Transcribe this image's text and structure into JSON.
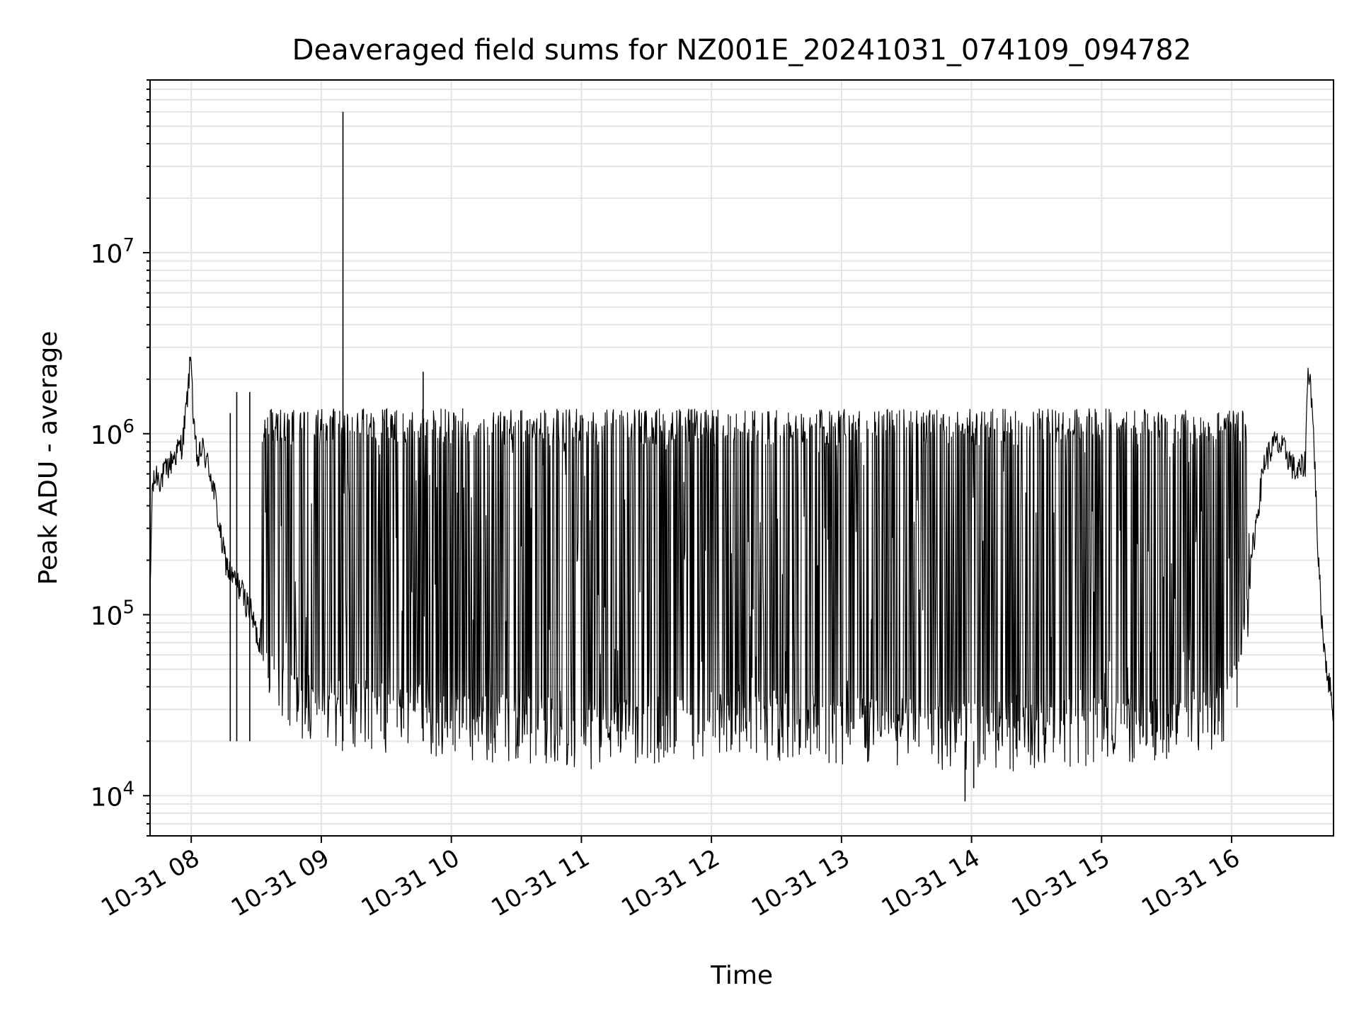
{
  "chart_data": {
    "type": "line",
    "title": "Deaveraged field sums for NZ001E_20241031_074109_094782",
    "xlabel": "Time",
    "ylabel": "Peak ADU - average",
    "y_scale": "log",
    "ylim": [
      6000,
      90000000
    ],
    "xlim": [
      "2024-10-31 07:41",
      "2024-10-31 16:47"
    ],
    "grid": true,
    "legend": "none",
    "line_color": "#000000",
    "grid_color": "#e5e5e5",
    "x_ticks": [
      {
        "time": "2024-10-31 08:00",
        "label": "10-31 08"
      },
      {
        "time": "2024-10-31 09:00",
        "label": "10-31 09"
      },
      {
        "time": "2024-10-31 10:00",
        "label": "10-31 10"
      },
      {
        "time": "2024-10-31 11:00",
        "label": "10-31 11"
      },
      {
        "time": "2024-10-31 12:00",
        "label": "10-31 12"
      },
      {
        "time": "2024-10-31 13:00",
        "label": "10-31 13"
      },
      {
        "time": "2024-10-31 14:00",
        "label": "10-31 14"
      },
      {
        "time": "2024-10-31 15:00",
        "label": "10-31 15"
      },
      {
        "time": "2024-10-31 16:00",
        "label": "10-31 16"
      }
    ],
    "y_ticks": [
      {
        "value": 10000,
        "base": "10",
        "exp": "4"
      },
      {
        "value": 100000,
        "base": "10",
        "exp": "5"
      },
      {
        "value": 1000000,
        "base": "10",
        "exp": "6"
      },
      {
        "value": 10000000,
        "base": "10",
        "exp": "7"
      }
    ],
    "series": [
      {
        "points": [
          [
            "2024-10-31 07:41",
            120000
          ],
          [
            "2024-10-31 07:42",
            500000
          ],
          [
            "2024-10-31 07:44",
            600000
          ],
          [
            "2024-10-31 07:46",
            560000
          ],
          [
            "2024-10-31 07:48",
            620000
          ],
          [
            "2024-10-31 07:50",
            680000
          ],
          [
            "2024-10-31 07:52",
            750000
          ],
          [
            "2024-10-31 07:54",
            820000
          ],
          [
            "2024-10-31 07:56",
            900000
          ],
          [
            "2024-10-31 07:58",
            1500000
          ],
          [
            "2024-10-31 08:00",
            2900000
          ],
          [
            "2024-10-31 08:01",
            1100000
          ],
          [
            "2024-10-31 08:03",
            700000
          ],
          [
            "2024-10-31 08:05",
            850000
          ],
          [
            "2024-10-31 08:07",
            720000
          ],
          [
            "2024-10-31 08:09",
            600000
          ],
          [
            "2024-10-31 08:11",
            450000
          ],
          [
            "2024-10-31 08:13",
            300000
          ],
          [
            "2024-10-31 08:15",
            220000
          ],
          [
            "2024-10-31 08:17",
            180000
          ],
          [
            "2024-10-31 08:19",
            160000
          ],
          [
            "2024-10-31 08:21",
            150000
          ],
          [
            "2024-10-31 08:23",
            140000
          ],
          [
            "2024-10-31 08:25",
            120000
          ],
          [
            "2024-10-31 08:27",
            110000
          ],
          [
            "2024-10-31 08:30",
            80000
          ],
          [
            "2024-10-31 08:33",
            60000
          ],
          [
            "2024-10-31 08:36",
            50000
          ],
          [
            "2024-10-31 08:40",
            42000
          ],
          [
            "2024-10-31 08:45",
            38000
          ],
          [
            "2024-10-31 08:50",
            35000
          ],
          [
            "2024-10-31 08:55",
            32000
          ],
          [
            "2024-10-31 09:00",
            30000
          ],
          [
            "2024-10-31 09:10",
            29000
          ],
          [
            "2024-10-31 09:20",
            29000
          ],
          [
            "2024-10-31 09:30",
            28000
          ],
          [
            "2024-10-31 10:00",
            27000
          ],
          [
            "2024-10-31 10:30",
            24000
          ],
          [
            "2024-10-31 11:00",
            23000
          ],
          [
            "2024-10-31 11:30",
            24000
          ],
          [
            "2024-10-31 12:00",
            25000
          ],
          [
            "2024-10-31 12:30",
            26000
          ],
          [
            "2024-10-31 13:00",
            24000
          ],
          [
            "2024-10-31 13:30",
            23000
          ],
          [
            "2024-10-31 14:00",
            22000
          ],
          [
            "2024-10-31 14:30",
            23000
          ],
          [
            "2024-10-31 15:00",
            24000
          ],
          [
            "2024-10-31 15:30",
            26000
          ],
          [
            "2024-10-31 15:55",
            30000
          ],
          [
            "2024-10-31 16:00",
            35000
          ],
          [
            "2024-10-31 16:05",
            60000
          ],
          [
            "2024-10-31 16:10",
            250000
          ],
          [
            "2024-10-31 16:15",
            700000
          ],
          [
            "2024-10-31 16:20",
            900000
          ],
          [
            "2024-10-31 16:25",
            800000
          ],
          [
            "2024-10-31 16:30",
            600000
          ],
          [
            "2024-10-31 16:34",
            700000
          ],
          [
            "2024-10-31 16:35",
            2000000
          ],
          [
            "2024-10-31 16:36",
            2300000
          ],
          [
            "2024-10-31 16:38",
            900000
          ],
          [
            "2024-10-31 16:40",
            200000
          ],
          [
            "2024-10-31 16:42",
            80000
          ],
          [
            "2024-10-31 16:44",
            50000
          ],
          [
            "2024-10-31 16:47",
            30000
          ]
        ],
        "spikes": [
          [
            "2024-10-31 09:10",
            60000000
          ],
          [
            "2024-10-31 09:47",
            2200000
          ],
          [
            "2024-10-31 08:18",
            1300000
          ],
          [
            "2024-10-31 08:21",
            1700000
          ],
          [
            "2024-10-31 08:27",
            1700000
          ],
          [
            "2024-10-31 13:57",
            9300
          ],
          [
            "2024-10-31 14:01",
            11000
          ]
        ],
        "oscillation_band": {
          "from": "2024-10-31 08:32",
          "to": "2024-10-31 16:08",
          "upper": 1150000,
          "lower": 20000,
          "min": 12000
        }
      }
    ]
  }
}
